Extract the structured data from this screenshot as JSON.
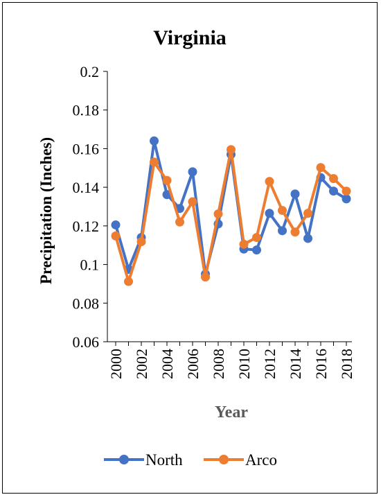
{
  "chart_data": {
    "type": "line",
    "title": "Virginia",
    "xlabel": "Year",
    "ylabel": "Precipitation (Inches)",
    "x": [
      2000,
      2001,
      2002,
      2003,
      2004,
      2005,
      2006,
      2007,
      2008,
      2009,
      2010,
      2011,
      2012,
      2013,
      2014,
      2015,
      2016,
      2017,
      2018
    ],
    "x_tick_labels": [
      "2000",
      "2002",
      "2004",
      "2006",
      "2008",
      "2010",
      "2012",
      "2014",
      "2016",
      "2018"
    ],
    "y_tick_labels": [
      "0.06",
      "0.08",
      "0.1",
      "0.12",
      "0.14",
      "0.16",
      "0.18",
      "0.2"
    ],
    "ylim": [
      0.06,
      0.2
    ],
    "grid": false,
    "legend_position": "bottom",
    "series": [
      {
        "name": "North",
        "color": "#4472C4",
        "values": [
          0.1205,
          0.0975,
          0.114,
          0.164,
          0.1362,
          0.129,
          0.148,
          0.095,
          0.121,
          0.157,
          0.108,
          0.1075,
          0.1265,
          0.1175,
          0.1365,
          0.1135,
          0.145,
          0.138,
          0.134
        ]
      },
      {
        "name": "Arco",
        "color": "#ED7D31",
        "values": [
          0.1148,
          0.0912,
          0.1118,
          0.153,
          0.1435,
          0.122,
          0.1325,
          0.0935,
          0.1262,
          0.1595,
          0.1105,
          0.114,
          0.143,
          0.128,
          0.1168,
          0.1265,
          0.1502,
          0.1445,
          0.138
        ]
      }
    ]
  }
}
